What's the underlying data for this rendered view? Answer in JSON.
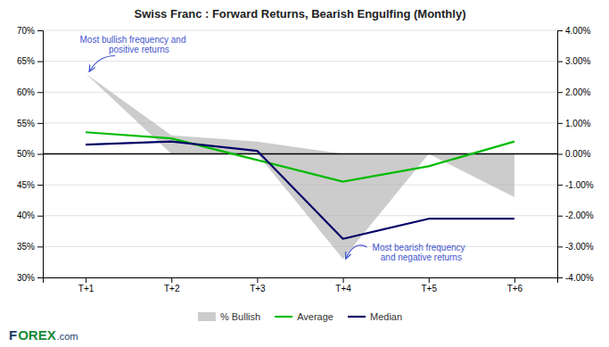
{
  "chart_data": {
    "type": "line",
    "title": "Swiss Franc : Forward Returns, Bearish Engulfing (Monthly)",
    "categories": [
      "T+1",
      "T+2",
      "T+3",
      "T+4",
      "T+5",
      "T+6"
    ],
    "series": [
      {
        "name": "% Bullish",
        "type": "area",
        "color": "#b0b0b0",
        "lower": [
          0.63,
          0.5,
          0.5,
          0.33,
          0.5,
          0.43
        ],
        "upper": [
          0.63,
          0.53,
          0.52,
          0.5,
          0.5,
          0.5
        ]
      },
      {
        "name": "Average",
        "type": "line",
        "axis": "y2",
        "color": "#00bb00",
        "values": [
          0.007,
          0.005,
          -0.002,
          -0.009,
          -0.004,
          0.004
        ]
      },
      {
        "name": "Median",
        "type": "line",
        "axis": "y2",
        "color": "#000066",
        "values": [
          0.003,
          0.004,
          0.001,
          -0.0275,
          -0.021,
          -0.021
        ]
      }
    ],
    "ylim": [
      0.3,
      0.7
    ],
    "yticks": [
      {
        "value": 0.3,
        "label": "30%"
      },
      {
        "value": 0.35,
        "label": "35%"
      },
      {
        "value": 0.4,
        "label": "40%"
      },
      {
        "value": 0.45,
        "label": "45%"
      },
      {
        "value": 0.5,
        "label": "50%"
      },
      {
        "value": 0.55,
        "label": "55%"
      },
      {
        "value": 0.6,
        "label": "60%"
      },
      {
        "value": 0.65,
        "label": "65%"
      },
      {
        "value": 0.7,
        "label": "70%"
      }
    ],
    "y2lim": [
      -0.04,
      0.04
    ],
    "y2ticks": [
      {
        "value": -0.04,
        "label": "-4.00%"
      },
      {
        "value": -0.03,
        "label": "-3.00%"
      },
      {
        "value": -0.02,
        "label": "-2.00%"
      },
      {
        "value": -0.01,
        "label": "-1.00%"
      },
      {
        "value": 0.0,
        "label": "0.00%"
      },
      {
        "value": 0.01,
        "label": "1.00%"
      },
      {
        "value": 0.02,
        "label": "2.00%"
      },
      {
        "value": 0.03,
        "label": "3.00%"
      },
      {
        "value": 0.04,
        "label": "4.00%"
      }
    ],
    "reference_lines": [
      {
        "value": 0.5,
        "color": "#000000"
      }
    ],
    "annotations": [
      {
        "text": "Most bullish frequency and\n     positive returns",
        "color": "#4455cc"
      },
      {
        "text": "Most bearish frequency\n  and negative returns",
        "color": "#4455cc"
      }
    ],
    "footer_texts": [
      {
        "text": "F",
        "color": "#1a3a6b"
      },
      {
        "text": "OREX",
        "color": "#1a8a3a"
      },
      {
        "text": ".com",
        "color": "#1a3a6b"
      }
    ],
    "grid": true,
    "legend": "bottom"
  }
}
